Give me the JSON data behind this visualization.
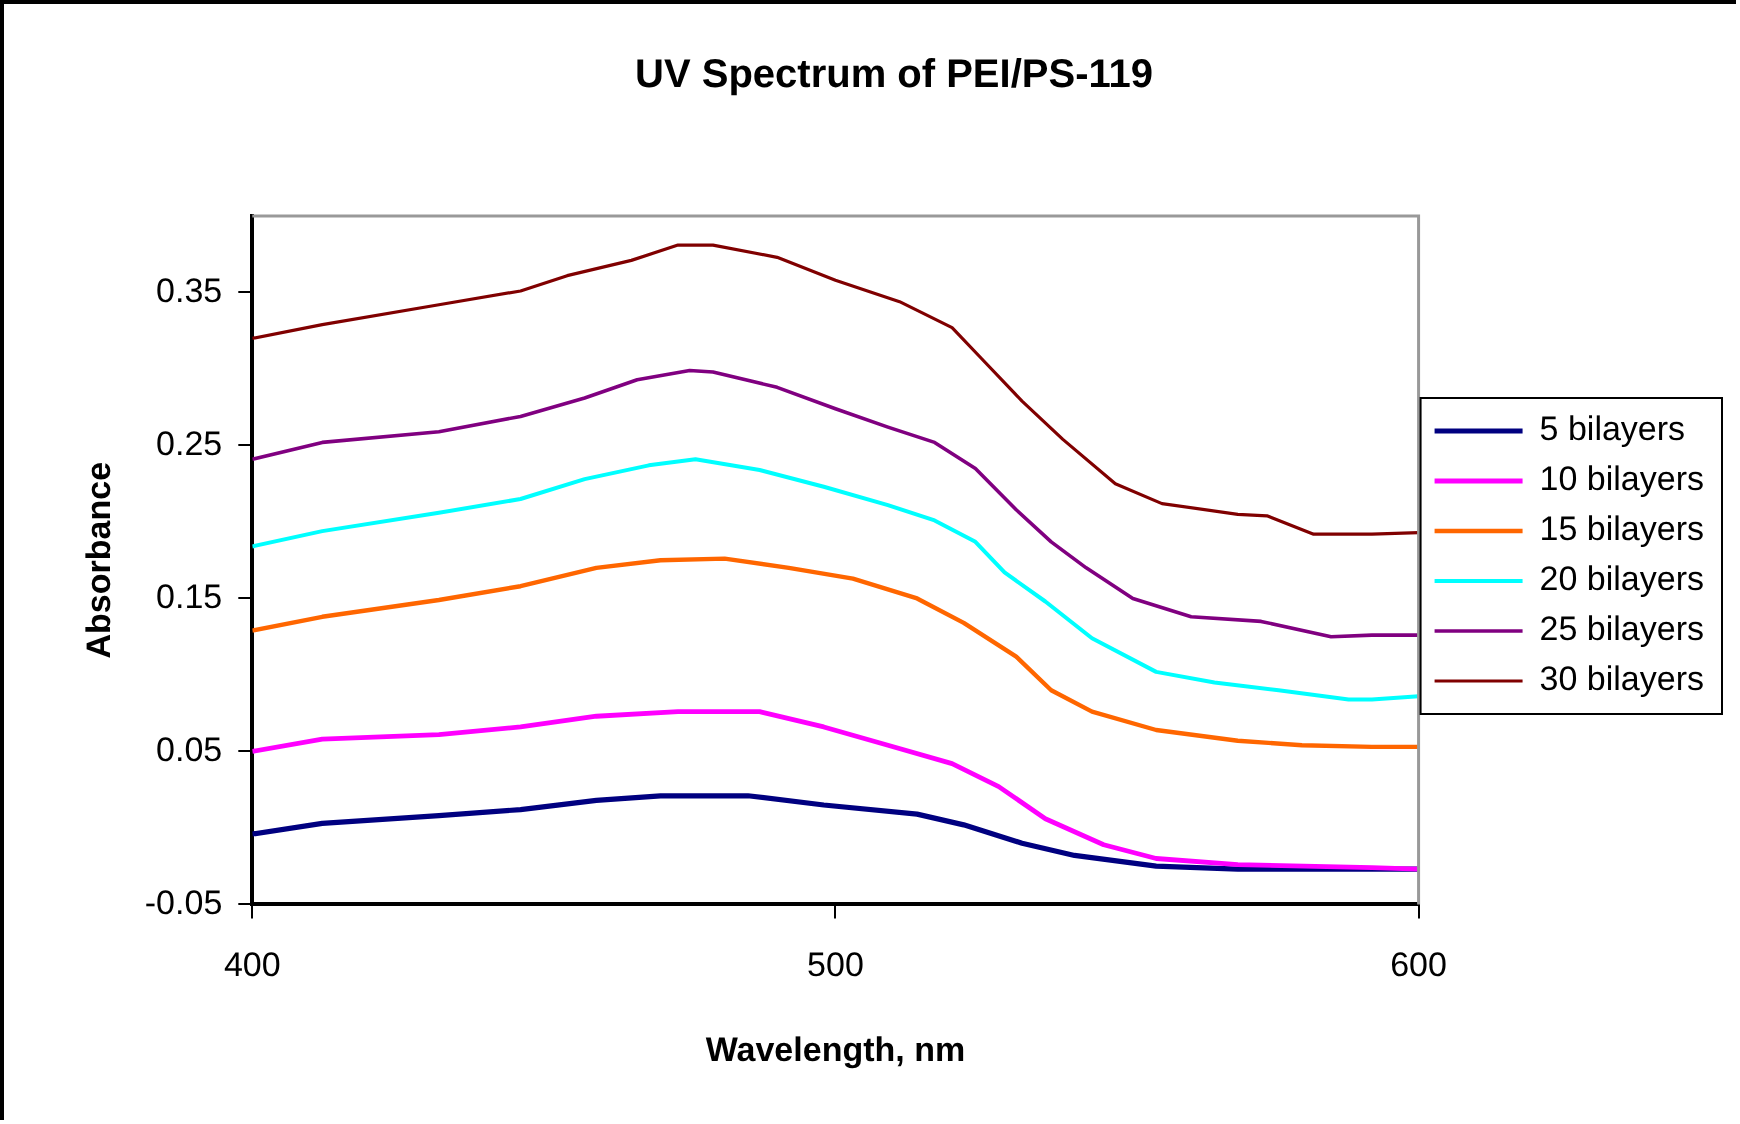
{
  "chart_data": {
    "type": "line",
    "title": "UV Spectrum of PEI/PS-119",
    "xlabel": "Wavelength, nm",
    "ylabel": "Absorbance",
    "xlim": [
      400,
      600
    ],
    "xticks": [
      400,
      500,
      600
    ],
    "ylim": [
      -0.05,
      0.4
    ],
    "yticks": [
      -0.05,
      0.05,
      0.15,
      0.25,
      0.35
    ],
    "grid": false,
    "legend": "right",
    "marker": "none",
    "line_style": "solid",
    "series": [
      {
        "name": "5 bilayers",
        "color": "#000080",
        "x": [
          400,
          412,
          432,
          446,
          459,
          470,
          485,
          498,
          514,
          522,
          532,
          541,
          555,
          569,
          592,
          600
        ],
        "values": [
          -0.004,
          0.003,
          0.008,
          0.012,
          0.018,
          0.021,
          0.021,
          0.015,
          0.009,
          0.002,
          -0.01,
          -0.018,
          -0.025,
          -0.027,
          -0.027,
          -0.027
        ]
      },
      {
        "name": "10 bilayers",
        "color": "#ff00ff",
        "x": [
          400,
          412,
          432,
          446,
          459,
          473,
          487,
          498,
          509,
          520,
          528,
          536,
          546,
          555,
          569,
          592,
          600
        ],
        "values": [
          0.05,
          0.058,
          0.061,
          0.066,
          0.073,
          0.076,
          0.076,
          0.066,
          0.054,
          0.042,
          0.027,
          0.006,
          -0.011,
          -0.02,
          -0.024,
          -0.026,
          -0.027
        ]
      },
      {
        "name": "15 bilayers",
        "color": "#ff6600",
        "x": [
          400,
          412,
          432,
          446,
          459,
          470,
          481,
          492,
          503,
          514,
          522,
          531,
          537,
          544,
          555,
          569,
          580,
          592,
          600
        ],
        "values": [
          0.129,
          0.138,
          0.149,
          0.158,
          0.17,
          0.175,
          0.176,
          0.17,
          0.163,
          0.15,
          0.134,
          0.112,
          0.09,
          0.076,
          0.064,
          0.057,
          0.054,
          0.053,
          0.053
        ]
      },
      {
        "name": "20 bilayers",
        "color": "#00ffff",
        "x": [
          400,
          412,
          432,
          446,
          457,
          468,
          476,
          487,
          498,
          509,
          517,
          524,
          529,
          536,
          544,
          555,
          565,
          576,
          588,
          592,
          600
        ],
        "values": [
          0.184,
          0.194,
          0.206,
          0.215,
          0.228,
          0.237,
          0.241,
          0.234,
          0.223,
          0.211,
          0.201,
          0.187,
          0.167,
          0.148,
          0.124,
          0.102,
          0.095,
          0.09,
          0.084,
          0.084,
          0.086
        ]
      },
      {
        "name": "25 bilayers",
        "color": "#800080",
        "x": [
          400,
          412,
          432,
          446,
          457,
          466,
          475,
          479,
          490,
          500,
          509,
          517,
          524,
          531,
          537,
          543,
          551,
          561,
          573,
          585,
          592,
          600
        ],
        "values": [
          0.241,
          0.252,
          0.259,
          0.269,
          0.281,
          0.293,
          0.299,
          0.298,
          0.288,
          0.274,
          0.262,
          0.252,
          0.235,
          0.208,
          0.187,
          0.17,
          0.15,
          0.138,
          0.135,
          0.125,
          0.126,
          0.126
        ]
      },
      {
        "name": "30 bilayers",
        "color": "#800000",
        "x": [
          400,
          412,
          432,
          446,
          454,
          465,
          473,
          479,
          490,
          500,
          511,
          520,
          525,
          532,
          539,
          548,
          556,
          569,
          574,
          582,
          592,
          600
        ],
        "values": [
          0.32,
          0.329,
          0.342,
          0.351,
          0.361,
          0.371,
          0.381,
          0.381,
          0.373,
          0.358,
          0.344,
          0.327,
          0.307,
          0.279,
          0.254,
          0.225,
          0.212,
          0.205,
          0.204,
          0.192,
          0.192,
          0.193
        ]
      }
    ]
  }
}
